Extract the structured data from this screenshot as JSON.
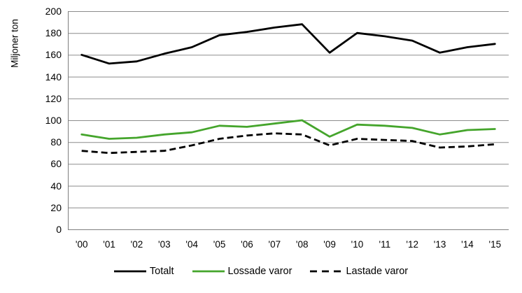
{
  "chart_data": {
    "type": "line",
    "title": "",
    "xlabel": "",
    "ylabel": "Miljoner ton",
    "ylim": [
      0,
      200
    ],
    "ytick_step": 20,
    "grid": true,
    "legend_position": "bottom",
    "categories": [
      "'00",
      "'01",
      "'02",
      "'03",
      "'04",
      "'05",
      "'06",
      "'07",
      "'08",
      "'09",
      "'10",
      "'11",
      "'12",
      "'13",
      "'14",
      "'15"
    ],
    "series": [
      {
        "name": "Totalt",
        "key": "totalt",
        "color": "#000000",
        "style": "solid",
        "values": [
          160,
          152,
          154,
          161,
          167,
          178,
          181,
          185,
          188,
          162,
          180,
          177,
          173,
          162,
          167,
          170
        ]
      },
      {
        "name": "Lossade varor",
        "key": "lossade-varor",
        "color": "#45a52c",
        "style": "solid",
        "values": [
          87,
          83,
          84,
          87,
          89,
          95,
          94,
          97,
          100,
          85,
          96,
          95,
          93,
          87,
          91,
          92
        ]
      },
      {
        "name": "Lastade varor",
        "key": "lastade-varor",
        "color": "#000000",
        "style": "dashed",
        "values": [
          72,
          70,
          71,
          72,
          77,
          83,
          86,
          88,
          87,
          77,
          83,
          82,
          81,
          75,
          76,
          78
        ]
      }
    ]
  },
  "colors": {
    "gridline": "#8c8c8c",
    "axis": "#7f7f7f",
    "background": "#ffffff",
    "text": "#000000"
  }
}
